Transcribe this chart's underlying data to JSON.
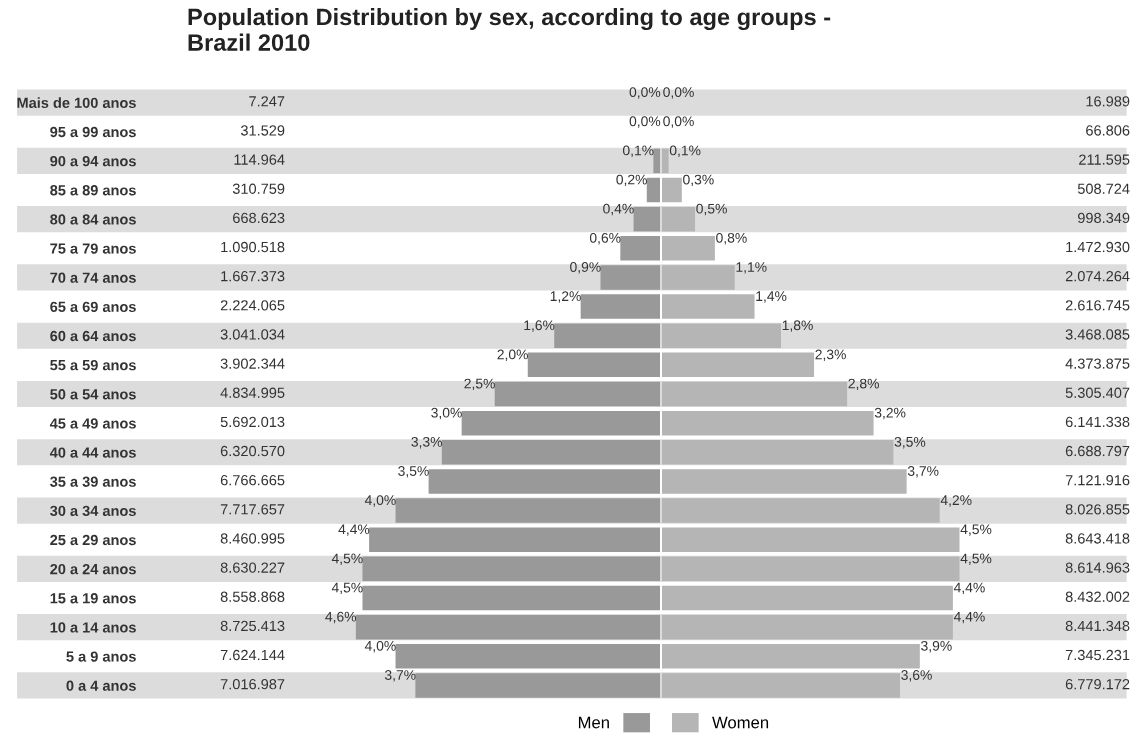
{
  "chart_data": [
    {
      "type": "bar",
      "orientation": "horizontal",
      "title": "Population Distribution by sex, according to age groups -\nBrazil 2010",
      "categories": [
        "Mais de 100 anos",
        "95 a 99 anos",
        "90 a 94 anos",
        "85 a 89 anos",
        "80 a 84 anos",
        "75 a 79 anos",
        "70 a 74 anos",
        "65 a 69 anos",
        "60 a 64 anos",
        "55 a 59 anos",
        "50 a 54 anos",
        "45 a 49 anos",
        "40 a 44 anos",
        "35 a 39 anos",
        "30 a 34 anos",
        "25 a 29 anos",
        "20 a 24 anos",
        "15 a 19 anos",
        "10 a 14 anos",
        "5 a 9 anos",
        "0 a 4 anos"
      ],
      "series": [
        {
          "name": "Men",
          "color": "#999999",
          "values": [
            0.0,
            0.0,
            0.1,
            0.2,
            0.4,
            0.6,
            0.9,
            1.2,
            1.6,
            2.0,
            2.5,
            3.0,
            3.3,
            3.5,
            4.0,
            4.4,
            4.5,
            4.5,
            4.6,
            4.0,
            3.7
          ],
          "value_labels": [
            "0,0%",
            "0,0%",
            "0,1%",
            "0,2%",
            "0,4%",
            "0,6%",
            "0,9%",
            "1,2%",
            "1,6%",
            "2,0%",
            "2,5%",
            "3,0%",
            "3,3%",
            "3,5%",
            "4,0%",
            "4,4%",
            "4,5%",
            "4,5%",
            "4,6%",
            "4,0%",
            "3,7%"
          ]
        }
      ],
      "annotations": [
        "7.247",
        "31.529",
        "114.964",
        "310.759",
        "668.623",
        "1.090.518",
        "1.667.373",
        "2.224.065",
        "3.041.034",
        "3.902.344",
        "4.834.995",
        "5.692.013",
        "6.320.570",
        "6.766.665",
        "7.717.657",
        "8.460.995",
        "8.630.227",
        "8.558.868",
        "8.725.413",
        "7.624.144",
        "7.016.987"
      ],
      "tick_labels": "y",
      "legend": "bottom right",
      "grid": false
    },
    {
      "type": "bar",
      "orientation": "horizontal",
      "categories": [
        null,
        null,
        null,
        null,
        null,
        null,
        null,
        null,
        null,
        null,
        null,
        null,
        null,
        null,
        null,
        null,
        null,
        null,
        null,
        null,
        null
      ],
      "series": [
        {
          "name": "Women",
          "color": "#b5b5b5",
          "values": [
            0.0,
            0.0,
            0.1,
            0.3,
            0.5,
            0.8,
            1.1,
            1.4,
            1.8,
            2.3,
            2.8,
            3.2,
            3.5,
            3.7,
            4.2,
            4.5,
            4.5,
            4.4,
            4.4,
            3.9,
            3.6
          ],
          "value_labels": [
            "0,0%",
            "0,0%",
            "0,1%",
            "0,3%",
            "0,5%",
            "0,8%",
            "1,1%",
            "1,4%",
            "1,8%",
            "2,3%",
            "2,8%",
            "3,2%",
            "3,5%",
            "3,7%",
            "4,2%",
            "4,5%",
            "4,5%",
            "4,4%",
            "4,4%",
            "3,9%",
            "3,6%"
          ]
        }
      ],
      "annotations": [
        "16.989",
        "66.806",
        "211.595",
        "508.724",
        "998.349",
        "1.472.930",
        "2.074.264",
        "2.616.745",
        "3.468.085",
        "4.373.875",
        "5.305.407",
        "6.141.338",
        "6.688.797",
        "7.121.916",
        "8.026.855",
        "8.643.418",
        "8.614.963",
        "8.432.002",
        "8.441.348",
        "7.345.231",
        "6.779.172"
      ],
      "tick_labels": false,
      "legend": "bottom left",
      "grid": false
    }
  ]
}
